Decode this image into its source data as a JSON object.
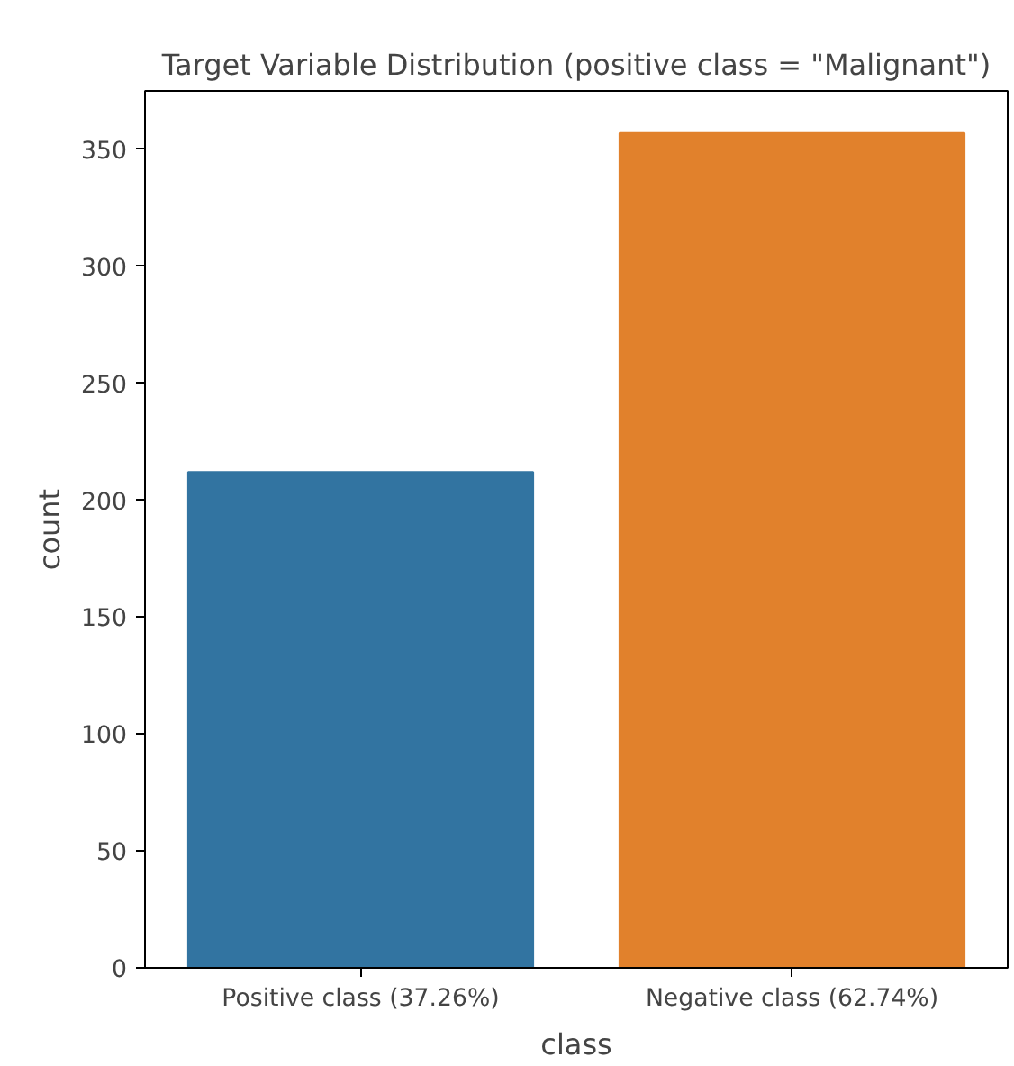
{
  "chart_data": {
    "type": "bar",
    "title": "Target Variable Distribution (positive class = \"Malignant\")",
    "xlabel": "class",
    "ylabel": "count",
    "categories": [
      "Positive class (37.26%)",
      "Negative class (62.74%)"
    ],
    "values": [
      212,
      357
    ],
    "colors": [
      "#3274a1",
      "#e1812c"
    ],
    "ylim": [
      0,
      375
    ],
    "yticks": [
      0,
      50,
      100,
      150,
      200,
      250,
      300,
      350
    ],
    "grid": false
  }
}
